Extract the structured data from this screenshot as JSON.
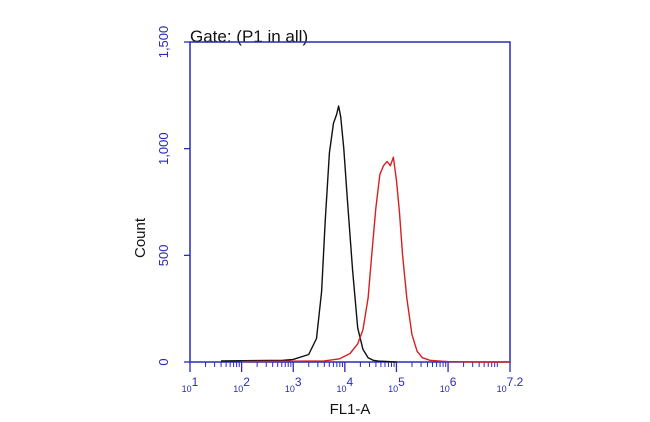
{
  "chart_data": {
    "type": "line",
    "title": "Gate: (P1 in all)",
    "xlabel": "FL1-A",
    "ylabel": "Count",
    "x_scale": "log",
    "xlim": [
      1,
      7.2
    ],
    "ylim": [
      0,
      1500
    ],
    "x_ticks": [
      {
        "pos": 1,
        "base": "10",
        "exp": "1"
      },
      {
        "pos": 2,
        "base": "10",
        "exp": "2"
      },
      {
        "pos": 3,
        "base": "10",
        "exp": "3"
      },
      {
        "pos": 4,
        "base": "10",
        "exp": "4"
      },
      {
        "pos": 5,
        "base": "10",
        "exp": "5"
      },
      {
        "pos": 6,
        "base": "10",
        "exp": "6"
      },
      {
        "pos": 7.2,
        "base": "10",
        "exp": "7.2"
      }
    ],
    "y_ticks": [
      {
        "value": 0,
        "label": "0"
      },
      {
        "value": 500,
        "label": "500"
      },
      {
        "value": 1000,
        "label": "1,000"
      },
      {
        "value": 1500,
        "label": "1,500"
      }
    ],
    "series": [
      {
        "color": "#111111",
        "x": [
          1.6,
          2.8,
          3.0,
          3.3,
          3.45,
          3.55,
          3.62,
          3.7,
          3.78,
          3.84,
          3.88,
          3.92,
          3.98,
          4.05,
          4.15,
          4.25,
          4.35,
          4.45,
          4.55,
          4.65,
          5.0
        ],
        "y": [
          5,
          8,
          12,
          35,
          110,
          330,
          660,
          980,
          1120,
          1160,
          1200,
          1150,
          1000,
          760,
          430,
          160,
          60,
          20,
          8,
          4,
          0
        ]
      },
      {
        "color": "#d62020",
        "x": [
          2.0,
          3.6,
          3.9,
          4.1,
          4.25,
          4.35,
          4.45,
          4.52,
          4.6,
          4.68,
          4.75,
          4.82,
          4.88,
          4.94,
          5.0,
          5.06,
          5.12,
          5.2,
          5.3,
          5.4,
          5.5,
          5.65,
          5.8,
          6.0,
          6.5,
          7.2
        ],
        "y": [
          2,
          5,
          15,
          40,
          85,
          150,
          300,
          500,
          720,
          880,
          920,
          940,
          920,
          960,
          850,
          700,
          500,
          300,
          130,
          50,
          20,
          8,
          5,
          2,
          0,
          0
        ]
      }
    ]
  }
}
